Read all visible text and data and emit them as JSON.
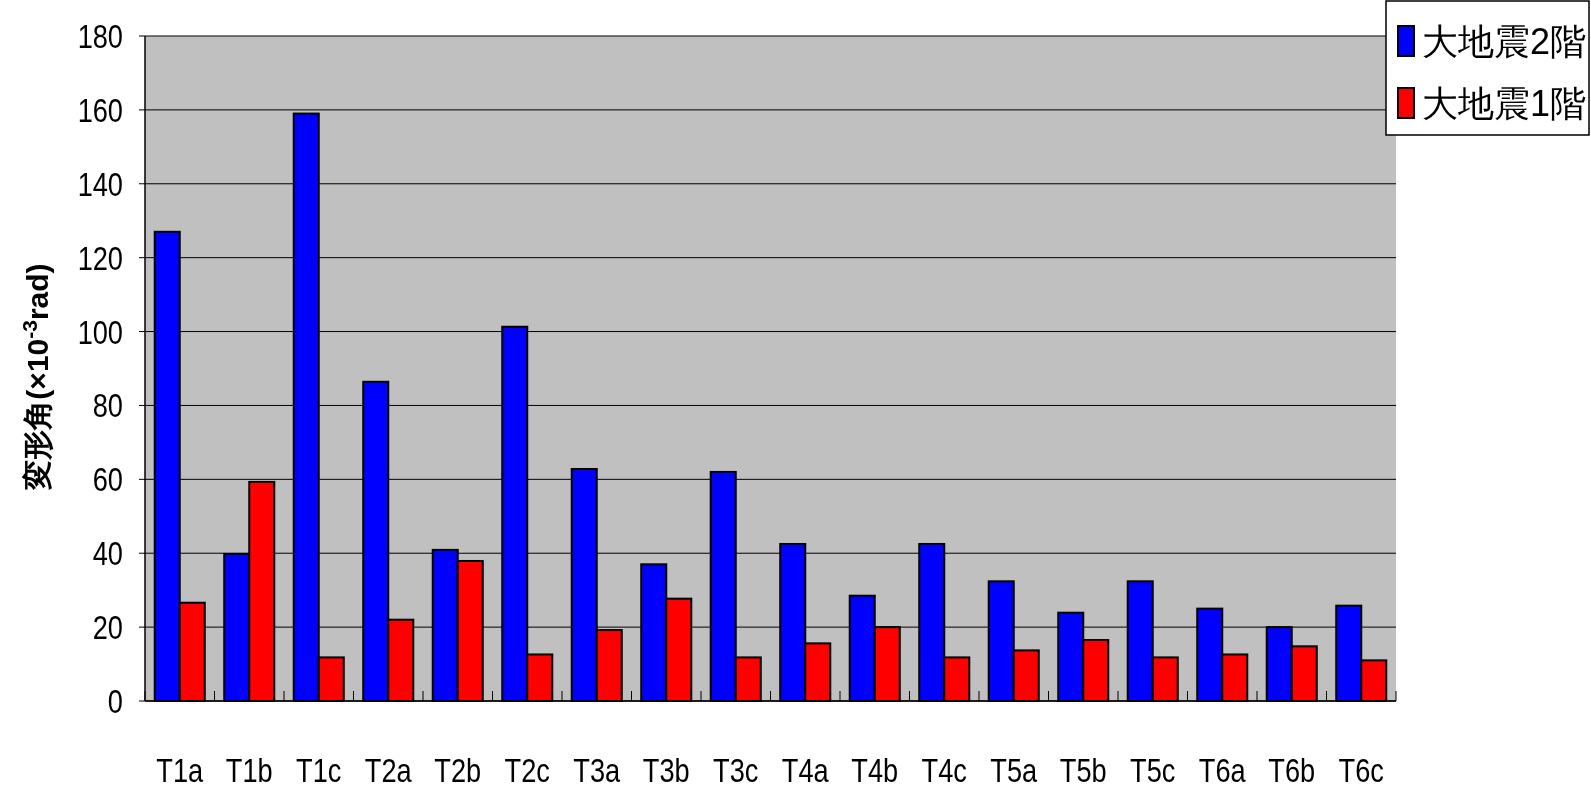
{
  "chart_data": {
    "type": "bar",
    "ylabel": "変形角(×10$^{-3}$rad)",
    "categories": [
      "T1a",
      "T1b",
      "T1c",
      "T2a",
      "T2b",
      "T2c",
      "T3a",
      "T3b",
      "T3c",
      "T4a",
      "T4b",
      "T4c",
      "T5a",
      "T5b",
      "T5c",
      "T6a",
      "T6b",
      "T6c"
    ],
    "series": [
      {
        "name": "大地震2階",
        "color": "#0000ff",
        "values": [
          127,
          39.8,
          159,
          86.4,
          40.9,
          101.3,
          62.8,
          37,
          62,
          42.5,
          28.5,
          42.5,
          32.4,
          23.9,
          32.4,
          25,
          20,
          25.8
        ]
      },
      {
        "name": "大地震1階",
        "color": "#ff0000",
        "values": [
          26.6,
          59.3,
          11.8,
          22,
          37.9,
          12.6,
          19.2,
          27.7,
          11.8,
          15.6,
          20,
          11.8,
          13.7,
          16.5,
          11.8,
          12.6,
          14.8,
          11
        ]
      }
    ],
    "ylim": [
      0,
      180
    ],
    "yticks": [
      0,
      20,
      40,
      60,
      80,
      100,
      120,
      140,
      160,
      180
    ],
    "grid": "y",
    "legend": "top right"
  }
}
